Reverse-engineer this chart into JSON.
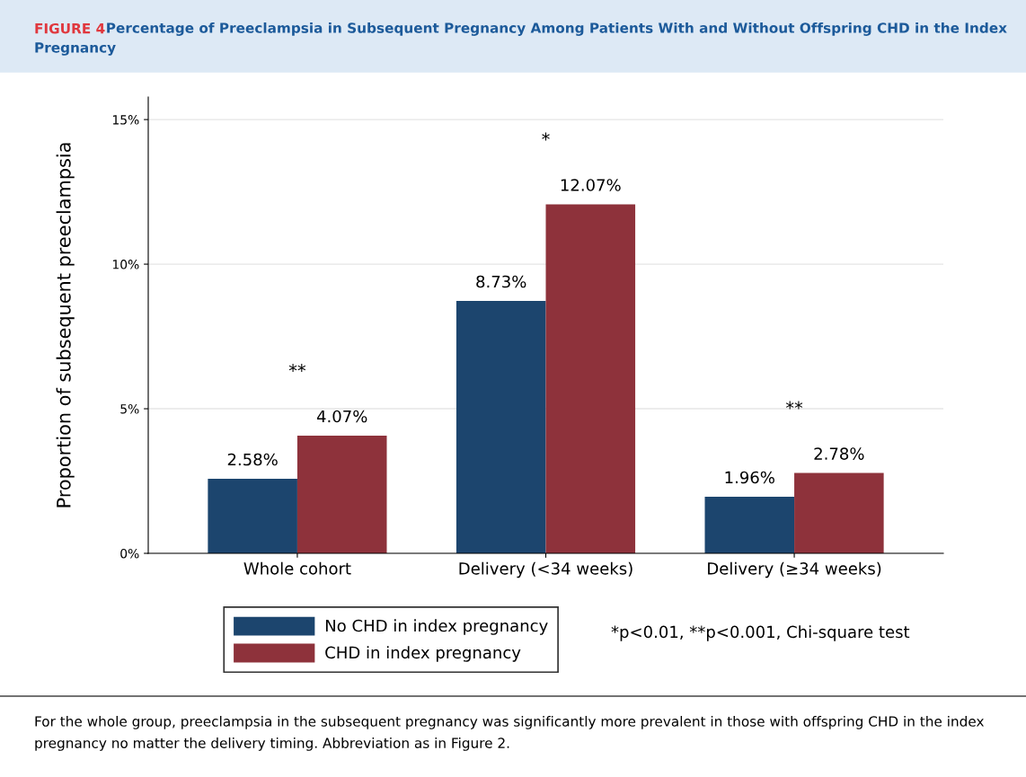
{
  "chart_data": {
    "type": "bar",
    "title": "Percentage of Preeclampsia in Subsequent Pregnancy Among Patients With and Without Offspring CHD in the Index Pregnancy",
    "ylabel": "Proportion of subsequent preeclampsia",
    "categories": [
      "Whole cohort",
      "Delivery (<34 weeks)",
      "Delivery (≥34 weeks)"
    ],
    "series": [
      {
        "name": "No CHD in index pregnancy",
        "color": "#1c456e",
        "values": [
          2.58,
          8.73,
          1.96
        ],
        "value_labels": [
          "2.58%",
          "8.73%",
          "1.96%"
        ]
      },
      {
        "name": "CHD in index pregnancy",
        "color": "#8e323b",
        "values": [
          4.07,
          12.07,
          2.78
        ],
        "value_labels": [
          "4.07%",
          "12.07%",
          "2.78%"
        ]
      }
    ],
    "ylim": [
      0,
      15.78
    ],
    "yticks": [
      {
        "value": 0,
        "label": "0%"
      },
      {
        "value": 5,
        "label": "5%"
      },
      {
        "value": 10,
        "label": "10%"
      },
      {
        "value": 15,
        "label": "15%"
      }
    ],
    "grid": "y",
    "legend": "bottom left",
    "annotations": [
      "FIGURE 4",
      "*p<0.01, **p<0.001, Chi-square test",
      "For the whole group, preeclampsia in the subsequent pregnancy was significantly more prevalent in those with offspring CHD in the index pregnancy no matter the delivery timing. Abbreviation as in Figure 2.",
      "**",
      "*",
      "**"
    ]
  }
}
